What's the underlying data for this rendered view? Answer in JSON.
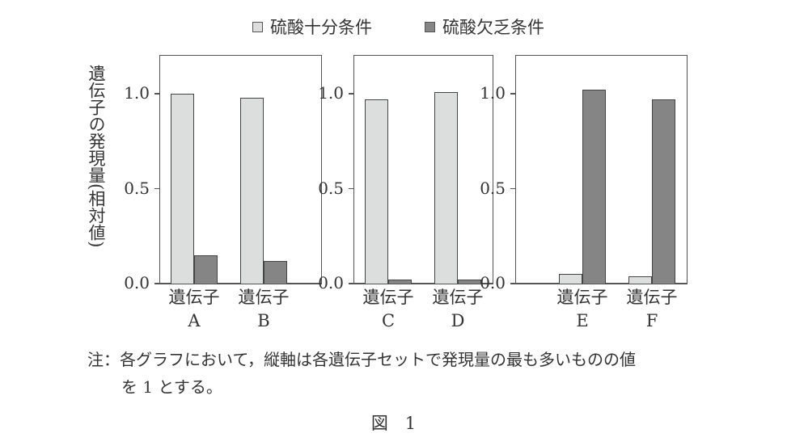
{
  "legend": {
    "items": [
      {
        "label": "硫酸十分条件",
        "color": "#dcdddd"
      },
      {
        "label": "硫酸欠乏条件",
        "color": "#858585"
      }
    ]
  },
  "ylabel": "遺伝子の発現量(相対値)",
  "yticks": [
    "0.0",
    "0.5",
    "1.0"
  ],
  "panels": [
    {
      "genes": [
        {
          "line1": "遺伝子",
          "line2": "A"
        },
        {
          "line1": "遺伝子",
          "line2": "B"
        }
      ]
    },
    {
      "genes": [
        {
          "line1": "遺伝子",
          "line2": "C"
        },
        {
          "line1": "遺伝子",
          "line2": "D"
        }
      ]
    },
    {
      "genes": [
        {
          "line1": "遺伝子",
          "line2": "E"
        },
        {
          "line1": "遺伝子",
          "line2": "F"
        }
      ]
    }
  ],
  "note": {
    "line1": "注：各グラフにおいて，縦軸は各遺伝子セットで発現量の最も多いものの値",
    "line2": "を 1 とする。"
  },
  "figure_caption": "図　1",
  "chart_data": {
    "type": "bar",
    "title": "",
    "xlabel": "",
    "ylabel": "遺伝子の発現量(相対値)",
    "ylim": [
      0,
      1.2
    ],
    "yticks": [
      0.0,
      0.5,
      1.0
    ],
    "grid": false,
    "legend_position": "top",
    "categories": [
      "遺伝子A",
      "遺伝子B",
      "遺伝子C",
      "遺伝子D",
      "遺伝子E",
      "遺伝子F"
    ],
    "panels": [
      [
        "遺伝子A",
        "遺伝子B"
      ],
      [
        "遺伝子C",
        "遺伝子D"
      ],
      [
        "遺伝子E",
        "遺伝子F"
      ]
    ],
    "series": [
      {
        "name": "硫酸十分条件",
        "color": "#dcdddd",
        "values": [
          1.0,
          0.98,
          0.97,
          1.01,
          0.05,
          0.04
        ]
      },
      {
        "name": "硫酸欠乏条件",
        "color": "#858585",
        "values": [
          0.15,
          0.12,
          0.02,
          0.02,
          1.02,
          0.97
        ]
      }
    ],
    "annotations": [
      "注：各グラフにおいて，縦軸は各遺伝子セットで発現量の最も多いものの値を 1 とする。",
      "図 1"
    ]
  }
}
